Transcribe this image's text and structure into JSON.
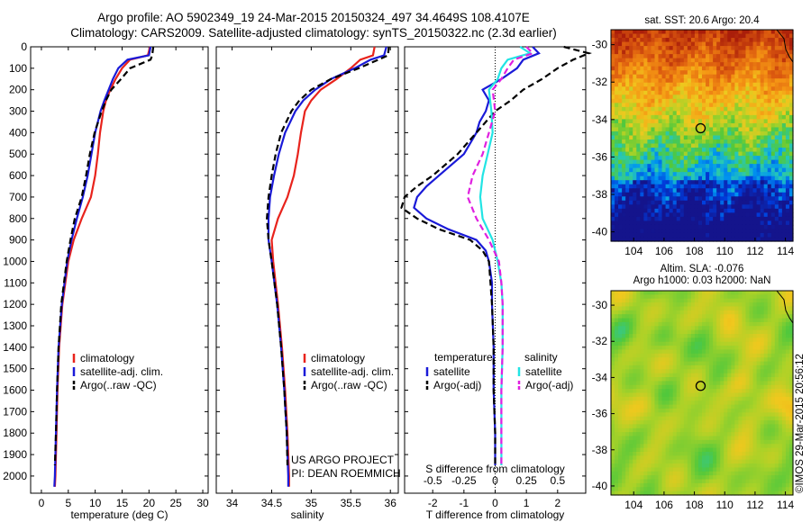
{
  "header": {
    "line1": "Argo profile: AO 5902349_19 24-Mar-2015 20150324_497 34.4649S 108.4107E",
    "line2": "Climatology: CARS2009. Satellite-adjusted climatology: synTS_20150322.nc (2.3d earlier)"
  },
  "credits": {
    "project": "US ARGO PROJECT",
    "pi": "PI: DEAN ROEMMICH",
    "imos": "©IMOS 29-Mar-2015 20:56:12"
  },
  "colors": {
    "climatology": "#e8231c",
    "satellite": "#1a1ad8",
    "argo": "#000000",
    "sal_satellite": "#22e4e4",
    "sal_argo": "#e020e0"
  },
  "chart_data": [
    {
      "type": "line",
      "panel": "temperature",
      "xlabel": "temperature (deg C)",
      "xlim": [
        -2,
        31
      ],
      "xticks": [
        0,
        5,
        10,
        15,
        20,
        25,
        30
      ],
      "ylim": [
        2080,
        0
      ],
      "yticks": [
        0,
        100,
        200,
        300,
        400,
        500,
        600,
        700,
        800,
        900,
        1000,
        1100,
        1200,
        1300,
        1400,
        1500,
        1600,
        1700,
        1800,
        1900,
        2000
      ],
      "legend": [
        "climatology",
        "satellite-adj. clim.",
        "Argo(..raw -QC)"
      ],
      "series": [
        {
          "name": "climatology",
          "color": "#e8231c",
          "depth": [
            0,
            40,
            60,
            100,
            150,
            200,
            250,
            300,
            400,
            500,
            600,
            700,
            800,
            900,
            1000,
            1200,
            1400,
            1600,
            1800,
            2000,
            2050
          ],
          "values": [
            20.2,
            19.8,
            16.5,
            15.0,
            13.8,
            12.8,
            12.0,
            11.5,
            10.9,
            10.5,
            10.0,
            9.2,
            7.5,
            6.0,
            5.0,
            3.9,
            3.3,
            3.0,
            2.8,
            2.6,
            2.5
          ]
        },
        {
          "name": "satellite-adj. clim.",
          "color": "#1a1ad8",
          "depth": [
            0,
            40,
            60,
            100,
            150,
            200,
            250,
            300,
            400,
            500,
            600,
            700,
            800,
            900,
            1000,
            1200,
            1400,
            1600,
            1800,
            2000,
            2050
          ],
          "values": [
            20.3,
            20.0,
            16.0,
            14.3,
            13.3,
            12.5,
            11.7,
            11.0,
            10.0,
            9.3,
            8.6,
            7.7,
            6.6,
            5.6,
            4.8,
            3.8,
            3.2,
            2.9,
            2.7,
            2.5,
            2.4
          ]
        },
        {
          "name": "Argo(..raw -QC)",
          "color": "#000000",
          "dash": true,
          "depth": [
            0,
            40,
            60,
            100,
            150,
            200,
            250,
            300,
            400,
            500,
            600,
            700,
            800,
            900,
            1000,
            1200,
            1400,
            1600,
            1800,
            1950
          ],
          "values": [
            20.8,
            20.6,
            20.3,
            16.5,
            14.8,
            13.0,
            12.0,
            11.2,
            9.9,
            9.0,
            8.3,
            7.5,
            6.2,
            5.4,
            4.7,
            3.7,
            3.2,
            2.9,
            2.7,
            2.5
          ]
        }
      ]
    },
    {
      "type": "line",
      "panel": "salinity",
      "xlabel": "salinity",
      "xlim": [
        33.8,
        36.1
      ],
      "xticks": [
        34,
        34.5,
        35,
        35.5,
        36
      ],
      "xtick_labels": [
        "34",
        "34.5",
        "35",
        "35.5",
        "36"
      ],
      "ylim": [
        2080,
        0
      ],
      "legend": [
        "climatology",
        "satellite-adj. clim.",
        "Argo(..raw -QC)"
      ],
      "series": [
        {
          "name": "climatology",
          "color": "#e8231c",
          "depth": [
            0,
            40,
            60,
            100,
            150,
            200,
            250,
            300,
            400,
            500,
            600,
            700,
            800,
            900,
            1000,
            1200,
            1400,
            1600,
            1800,
            2000,
            2050
          ],
          "values": [
            35.8,
            35.78,
            35.62,
            35.5,
            35.32,
            35.12,
            35.0,
            34.92,
            34.87,
            34.83,
            34.78,
            34.7,
            34.58,
            34.5,
            34.52,
            34.58,
            34.63,
            34.67,
            34.7,
            34.72,
            34.72
          ]
        },
        {
          "name": "satellite-adj. clim.",
          "color": "#1a1ad8",
          "depth": [
            0,
            40,
            60,
            100,
            150,
            200,
            250,
            300,
            400,
            500,
            600,
            700,
            800,
            900,
            1000,
            1200,
            1400,
            1600,
            1800,
            2000,
            2050
          ],
          "values": [
            35.95,
            35.92,
            35.75,
            35.55,
            35.25,
            35.05,
            34.9,
            34.8,
            34.67,
            34.59,
            34.53,
            34.48,
            34.46,
            34.46,
            34.5,
            34.57,
            34.62,
            34.66,
            34.69,
            34.71,
            34.71
          ]
        },
        {
          "name": "Argo(..raw -QC)",
          "color": "#000000",
          "dash": true,
          "depth": [
            0,
            40,
            60,
            100,
            150,
            200,
            250,
            300,
            400,
            500,
            600,
            700,
            800,
            900,
            1000,
            1200,
            1400,
            1600,
            1800,
            1950
          ],
          "values": [
            35.98,
            35.97,
            35.85,
            35.6,
            35.25,
            35.0,
            34.85,
            34.75,
            34.62,
            34.55,
            34.5,
            34.46,
            34.44,
            34.46,
            34.5,
            34.57,
            34.62,
            34.66,
            34.69,
            34.7
          ]
        }
      ]
    },
    {
      "type": "line",
      "panel": "difference",
      "xlabel": "T difference from climatology",
      "xlabel_top": "S difference from climatology",
      "xlim": [
        -2.9,
        2.9
      ],
      "xticks": [
        -2,
        -1,
        0,
        1,
        2
      ],
      "xticks_S": [
        -0.5,
        -0.25,
        0,
        0.25,
        0.5
      ],
      "ylim": [
        2080,
        0
      ],
      "legend_left_title": "temperature",
      "legend_right_title": "salinity",
      "legend": [
        "satellite",
        "Argo(-adj)",
        "satellite",
        "Argo(-adj)"
      ],
      "series": [
        {
          "name": "T satellite",
          "color": "#1a1ad8",
          "depth": [
            0,
            30,
            60,
            100,
            150,
            200,
            250,
            300,
            350,
            400,
            500,
            600,
            650,
            700,
            750,
            800,
            850,
            900,
            950,
            1000,
            1100,
            1200,
            1400,
            1600,
            1800,
            1950
          ],
          "values": [
            1.2,
            1.4,
            0.9,
            0.7,
            0.2,
            -0.4,
            -0.2,
            -0.3,
            -0.5,
            -0.6,
            -1.0,
            -1.8,
            -2.2,
            -2.5,
            -2.6,
            -2.2,
            -1.5,
            -0.6,
            -0.3,
            -0.2,
            -0.1,
            -0.1,
            -0.05,
            -0.05,
            0,
            0
          ]
        },
        {
          "name": "T Argo(-adj)",
          "color": "#000000",
          "dash": true,
          "depth": [
            0,
            30,
            60,
            100,
            150,
            200,
            250,
            300,
            400,
            500,
            600,
            650,
            700,
            750,
            800,
            850,
            900,
            950,
            1000,
            1100,
            1200,
            1400,
            1600,
            1800,
            1950
          ],
          "values": [
            2.2,
            3.0,
            2.5,
            2.0,
            1.5,
            0.9,
            0.5,
            0.0,
            -0.6,
            -1.2,
            -2.0,
            -2.5,
            -2.9,
            -3.0,
            -2.5,
            -1.8,
            -0.8,
            -0.4,
            -0.2,
            -0.15,
            -0.1,
            -0.05,
            -0.05,
            0,
            0
          ]
        },
        {
          "name": "S satellite",
          "color": "#22e4e4",
          "depth": [
            0,
            30,
            60,
            100,
            150,
            200,
            300,
            400,
            500,
            600,
            700,
            800,
            900,
            1000,
            1100,
            1200,
            1400,
            1600,
            1800,
            1950
          ],
          "values": [
            0.2,
            0.28,
            0.1,
            0.05,
            0.02,
            -0.05,
            -0.03,
            -0.02,
            -0.06,
            -0.1,
            -0.12,
            -0.1,
            -0.02,
            0.02,
            0.05,
            0.06,
            0.06,
            0.05,
            0.05,
            0.05
          ]
        },
        {
          "name": "S Argo(-adj)",
          "color": "#e020e0",
          "dash": true,
          "depth": [
            0,
            30,
            60,
            100,
            150,
            200,
            300,
            400,
            500,
            600,
            700,
            800,
            900,
            1000,
            1100,
            1200,
            1400,
            1600,
            1800,
            1950
          ],
          "values": [
            0.25,
            0.3,
            0.15,
            0.1,
            0.05,
            -0.02,
            0.0,
            -0.05,
            -0.1,
            -0.18,
            -0.22,
            -0.15,
            -0.05,
            0.03,
            0.05,
            0.06,
            0.06,
            0.05,
            0.05,
            0.05
          ]
        }
      ]
    },
    {
      "type": "heatmap",
      "panel": "sst_map",
      "title": "sat. SST: 20.6 Argo: 20.4",
      "x": [
        102.5,
        114.5
      ],
      "y": [
        -40.5,
        -29.2
      ],
      "xticks": [
        104,
        106,
        108,
        110,
        112,
        114
      ],
      "yticks": [
        -30,
        -32,
        -34,
        -36,
        -38,
        -40
      ],
      "marker": {
        "lon": 108.4107,
        "lat": -34.4649
      }
    },
    {
      "type": "heatmap",
      "panel": "sla_map",
      "title": "Altim. SLA: -0.076",
      "subtitle": "Argo h1000: 0.03 h2000: NaN",
      "x": [
        102.5,
        114.5
      ],
      "y": [
        -40.5,
        -29.2
      ],
      "xticks": [
        104,
        106,
        108,
        110,
        112,
        114
      ],
      "yticks": [
        -30,
        -32,
        -34,
        -36,
        -38,
        -40
      ],
      "marker": {
        "lon": 108.4107,
        "lat": -34.4649
      }
    }
  ]
}
